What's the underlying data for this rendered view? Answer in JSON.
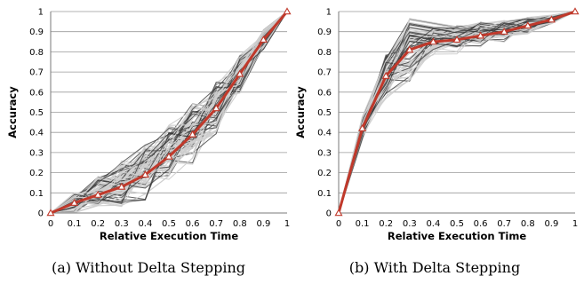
{
  "chart_data": [
    {
      "type": "line",
      "caption": "(a) Without Delta Stepping",
      "xlabel": "Relative Execution Time",
      "ylabel": "Accuracy",
      "xlim": [
        0,
        1
      ],
      "ylim": [
        0,
        1
      ],
      "x_ticks": [
        "0",
        "0.1",
        "0.2",
        "0.3",
        "0.4",
        "0.5",
        "0.6",
        "0.7",
        "0.8",
        "0.9",
        "1"
      ],
      "y_ticks": [
        "0",
        "0.1",
        "0.2",
        "0.3",
        "0.4",
        "0.5",
        "0.6",
        "0.7",
        "0.8",
        "0.9",
        "1"
      ],
      "grid": "horizontal",
      "legend": "none",
      "colors": {
        "mean": "#c0392b",
        "runs_dark": "#3a3a3a",
        "runs_light": "#cfcfcf",
        "marker_fill": "#ffffff"
      },
      "x": [
        0,
        0.1,
        0.2,
        0.3,
        0.4,
        0.5,
        0.6,
        0.7,
        0.8,
        0.9,
        1
      ],
      "mean_series": {
        "values": [
          0,
          0.05,
          0.09,
          0.13,
          0.19,
          0.28,
          0.39,
          0.52,
          0.69,
          0.86,
          1
        ]
      },
      "run_series_count": 80
    },
    {
      "type": "line",
      "caption": "(b) With Delta Stepping",
      "xlabel": "Relative Execution Time",
      "ylabel": "Accuracy",
      "xlim": [
        0,
        1
      ],
      "ylim": [
        0,
        1
      ],
      "x_ticks": [
        "0",
        "0.1",
        "0.2",
        "0.3",
        "0.4",
        "0.5",
        "0.6",
        "0.7",
        "0.8",
        "0.9",
        "1"
      ],
      "y_ticks": [
        "0",
        "0.1",
        "0.2",
        "0.3",
        "0.4",
        "0.5",
        "0.6",
        "0.7",
        "0.8",
        "0.9",
        "1"
      ],
      "grid": "horizontal",
      "legend": "none",
      "colors": {
        "mean": "#c0392b",
        "runs_dark": "#3a3a3a",
        "runs_light": "#cfcfcf",
        "marker_fill": "#ffffff"
      },
      "x": [
        0,
        0.1,
        0.2,
        0.3,
        0.4,
        0.5,
        0.6,
        0.7,
        0.8,
        0.9,
        1
      ],
      "mean_series": {
        "values": [
          0,
          0.42,
          0.68,
          0.81,
          0.85,
          0.86,
          0.88,
          0.9,
          0.93,
          0.96,
          1
        ]
      },
      "run_series_count": 80
    }
  ]
}
